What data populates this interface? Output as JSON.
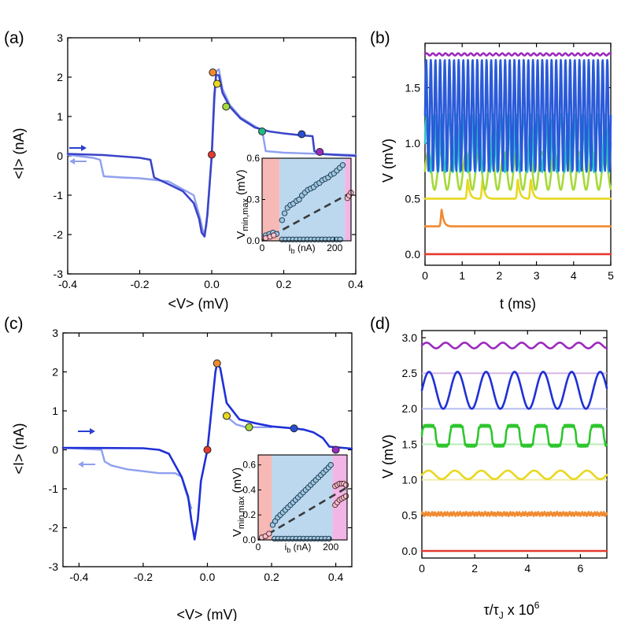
{
  "chart_data": [
    {
      "id": "a",
      "type": "line",
      "panel_label": "(a)",
      "xlabel": "<V> (mV)",
      "ylabel": "<I> (nA)",
      "xlim": [
        -0.4,
        0.4
      ],
      "ylim": [
        -3,
        3
      ],
      "xticks": [
        -0.4,
        -0.2,
        0.0,
        0.2,
        0.4
      ],
      "xtick_labels": [
        "-0.4",
        "-0.2",
        "0.0",
        "0.2",
        "0.4"
      ],
      "yticks": [
        -3,
        -2,
        -1,
        0,
        1,
        2,
        3
      ],
      "ytick_labels": [
        "-3",
        "-2",
        "-1",
        "0",
        "1",
        "2",
        "3"
      ],
      "series": [
        {
          "name": "up-sweep",
          "color": "#3a44c8",
          "x": [
            -0.4,
            -0.3,
            -0.2,
            -0.17,
            -0.16,
            -0.12,
            -0.08,
            -0.05,
            -0.035,
            -0.028,
            -0.02,
            -0.012,
            0.0,
            0.007,
            0.012,
            0.02,
            0.03,
            0.05,
            0.08,
            0.12,
            0.16,
            0.2,
            0.25,
            0.28,
            0.285,
            0.3,
            0.35,
            0.4
          ],
          "y": [
            0.05,
            0.02,
            -0.05,
            -0.1,
            -0.55,
            -0.72,
            -0.9,
            -1.2,
            -1.6,
            -1.95,
            -2.05,
            -1.5,
            0.0,
            1.5,
            2.05,
            2.05,
            1.6,
            1.25,
            0.95,
            0.72,
            0.62,
            0.57,
            0.52,
            0.5,
            0.12,
            0.05,
            0.02,
            0.0
          ]
        },
        {
          "name": "down-sweep",
          "color": "#8fa0ef",
          "x": [
            -0.4,
            -0.33,
            -0.31,
            -0.3,
            -0.25,
            -0.2,
            -0.12,
            -0.05,
            -0.032,
            -0.022,
            -0.015,
            0.0,
            0.008,
            0.013,
            0.02,
            0.03,
            0.05,
            0.08,
            0.12,
            0.14,
            0.15,
            0.2,
            0.3,
            0.4
          ],
          "y": [
            0.03,
            -0.05,
            -0.1,
            -0.52,
            -0.55,
            -0.57,
            -0.65,
            -1.0,
            -1.6,
            -2.0,
            -1.8,
            0.0,
            1.5,
            2.15,
            2.2,
            1.7,
            1.3,
            0.98,
            0.75,
            0.65,
            0.12,
            0.08,
            0.05,
            0.02
          ]
        }
      ],
      "markers": [
        {
          "x": 0.0,
          "y": 0.03,
          "color": "#e43a2f"
        },
        {
          "x": 0.003,
          "y": 2.12,
          "color": "#f08a30"
        },
        {
          "x": 0.015,
          "y": 1.83,
          "color": "#e8d820"
        },
        {
          "x": 0.04,
          "y": 1.25,
          "color": "#a6d93a"
        },
        {
          "x": 0.14,
          "y": 0.62,
          "color": "#21b98a"
        },
        {
          "x": 0.25,
          "y": 0.55,
          "color": "#2a4fd7"
        },
        {
          "x": 0.3,
          "y": 0.1,
          "color": "#9b2bbd"
        }
      ],
      "arrows": [
        {
          "direction": "right",
          "color": "#2a3fd0"
        },
        {
          "direction": "left",
          "color": "#8fa0ef"
        }
      ],
      "inset": {
        "type": "scatter",
        "xlabel": "I_b (nA)",
        "xlabel_main": "I",
        "xlabel_sub": "b",
        "xlabel_unit": " (nA)",
        "ylabel_main": "V",
        "ylabel_sub": "min,max",
        "ylabel_unit": " (mV)",
        "xlim": [
          0,
          245
        ],
        "ylim": [
          0,
          0.6
        ],
        "xticks": [
          0,
          200
        ],
        "xtick_labels": [
          "0",
          "200"
        ],
        "yticks": [
          0.0,
          0.3,
          0.6
        ],
        "ytick_labels": [
          "0.0",
          "0.3",
          "0.6"
        ],
        "regions": [
          {
            "from": 0,
            "to": 48,
            "color": "#f7b9b5"
          },
          {
            "from": 48,
            "to": 228,
            "color": "#bcd8ee"
          },
          {
            "from": 228,
            "to": 245,
            "color": "#f2b6e6"
          }
        ],
        "vmax_x": [
          10,
          20,
          30,
          40,
          55,
          62,
          70,
          78,
          86,
          95,
          102,
          110,
          118,
          126,
          134,
          142,
          150,
          158,
          166,
          174,
          182,
          190,
          198,
          206,
          214,
          222
        ],
        "vmax_y": [
          0.04,
          0.05,
          0.06,
          0.05,
          0.15,
          0.2,
          0.24,
          0.26,
          0.27,
          0.29,
          0.3,
          0.33,
          0.35,
          0.37,
          0.38,
          0.39,
          0.41,
          0.42,
          0.44,
          0.45,
          0.46,
          0.48,
          0.49,
          0.51,
          0.53,
          0.55
        ],
        "vmin_x": [
          55,
          65,
          75,
          85,
          95,
          105,
          115,
          125,
          135,
          145,
          155,
          165,
          175,
          185,
          195,
          205,
          215
        ],
        "vmin_y": [
          0.01,
          0.01,
          0.01,
          0.01,
          0.01,
          0.01,
          0.01,
          0.01,
          0.01,
          0.01,
          0.01,
          0.01,
          0.01,
          0.01,
          0.01,
          0.01,
          0.01
        ],
        "pink_x": [
          10,
          22,
          32,
          235,
          240,
          245
        ],
        "pink_y": [
          0.02,
          0.03,
          0.04,
          0.31,
          0.33,
          0.35
        ],
        "trend": {
          "x": [
            0,
            245
          ],
          "y": [
            0.0,
            0.35
          ]
        }
      }
    },
    {
      "id": "b",
      "type": "line",
      "panel_label": "(b)",
      "xlabel": "t (ms)",
      "ylabel": "V (mV)",
      "xlim": [
        0,
        5
      ],
      "ylim": [
        -0.1,
        1.9
      ],
      "xticks": [
        0,
        1,
        2,
        3,
        4,
        5
      ],
      "xtick_labels": [
        "0",
        "1",
        "2",
        "3",
        "4",
        "5"
      ],
      "yticks": [
        0.0,
        0.5,
        1.0,
        1.5
      ],
      "ytick_labels": [
        "0.0",
        "0.5",
        "1.0",
        "1.5"
      ],
      "traces": [
        {
          "kind": "flat",
          "baseline": 0.0,
          "amp": 0.0,
          "color": "#e43a2f"
        },
        {
          "kind": "spike",
          "baseline": 0.25,
          "amp": 0.15,
          "spike_times": [
            0.45
          ],
          "width": 0.12,
          "color": "#f08a30"
        },
        {
          "kind": "spike",
          "baseline": 0.5,
          "amp": 0.17,
          "spike_times": [
            1.15,
            1.55,
            2.5,
            2.85
          ],
          "width": 0.12,
          "color": "#e8d820"
        },
        {
          "kind": "osc",
          "baseline": 0.75,
          "amp": 0.17,
          "period": 0.34,
          "color": "#a6d93a"
        },
        {
          "kind": "osc",
          "baseline": 1.0,
          "amp": 0.26,
          "period": 0.2,
          "color": "#27c6cb"
        },
        {
          "kind": "osc",
          "baseline": 1.25,
          "amp": 0.5,
          "period": 0.125,
          "color": "#2a5ad8"
        },
        {
          "kind": "flat",
          "baseline": 1.8,
          "amp": 0.01,
          "color": "#9b2bbd"
        }
      ]
    },
    {
      "id": "c",
      "type": "line",
      "panel_label": "(c)",
      "xlabel": "<V> (mV)",
      "ylabel": "<I> (nA)",
      "xlim": [
        -0.45,
        0.45
      ],
      "ylim": [
        -3,
        3
      ],
      "xticks": [
        -0.4,
        -0.2,
        0.0,
        0.2,
        0.4
      ],
      "xtick_labels": [
        "-0.4",
        "-0.2",
        "0.0",
        "0.2",
        "0.4"
      ],
      "yticks": [
        -3,
        -2,
        -1,
        0,
        1,
        2,
        3
      ],
      "ytick_labels": [
        "-3",
        "-2",
        "-1",
        "0",
        "1",
        "2",
        "3"
      ],
      "series": [
        {
          "name": "up-sweep",
          "color": "#1f30d6",
          "x": [
            -0.45,
            -0.2,
            -0.15,
            -0.12,
            -0.1,
            -0.08,
            -0.06,
            -0.05,
            -0.04,
            -0.03,
            -0.02,
            0.0,
            0.015,
            0.025,
            0.03,
            0.04,
            0.06,
            0.1,
            0.15,
            0.2,
            0.27,
            0.3,
            0.33,
            0.36,
            0.38,
            0.45
          ],
          "y": [
            0.05,
            0.04,
            0.0,
            -0.1,
            -0.4,
            -0.7,
            -1.2,
            -1.8,
            -2.3,
            -1.8,
            -0.8,
            0.0,
            1.2,
            2.0,
            2.2,
            2.1,
            1.2,
            0.78,
            0.68,
            0.6,
            0.55,
            0.52,
            0.45,
            0.3,
            0.08,
            0.03
          ]
        },
        {
          "name": "down-sweep",
          "color": "#8fa0ef",
          "x": [
            -0.45,
            -0.33,
            -0.32,
            -0.3,
            -0.25,
            -0.2,
            -0.15,
            -0.1,
            -0.08,
            -0.07,
            -0.05
          ],
          "y": [
            0.05,
            0.0,
            -0.3,
            -0.4,
            -0.5,
            -0.55,
            -0.6,
            -0.6,
            -0.7,
            -1.0,
            -1.5
          ]
        },
        {
          "name": "down-sweep-upper",
          "color": "#8fa0ef",
          "x": [
            0.06,
            0.09,
            0.12,
            0.16,
            0.2
          ],
          "y": [
            0.85,
            0.65,
            0.58,
            0.58,
            0.58
          ]
        }
      ],
      "markers": [
        {
          "x": 0.0,
          "y": 0.0,
          "color": "#e43a2f"
        },
        {
          "x": 0.03,
          "y": 2.22,
          "color": "#f08a30"
        },
        {
          "x": 0.06,
          "y": 0.87,
          "color": "#e8d820"
        },
        {
          "x": 0.13,
          "y": 0.58,
          "color": "#a6d93a"
        },
        {
          "x": 0.27,
          "y": 0.55,
          "color": "#2a4fd7"
        },
        {
          "x": 0.4,
          "y": 0.0,
          "color": "#9b2bbd"
        }
      ],
      "arrows": [
        {
          "direction": "right",
          "color": "#2a3fd0"
        },
        {
          "direction": "left",
          "color": "#8fa0ef"
        }
      ],
      "inset": {
        "type": "scatter",
        "xlabel": "i_b (nA)",
        "xlabel_main": "i",
        "xlabel_sub": "b",
        "xlabel_unit": " (nA)",
        "ylabel_main": "V",
        "ylabel_sub": "min,max",
        "ylabel_unit": " (mV)",
        "xlim": [
          0,
          245
        ],
        "ylim": [
          0,
          0.68
        ],
        "xticks": [
          0,
          200
        ],
        "xtick_labels": [
          "0",
          "200"
        ],
        "yticks": [
          0.0,
          0.2,
          0.4,
          0.6
        ],
        "ytick_labels": [
          "0.0",
          "0.2",
          "0.4",
          "0.6"
        ],
        "regions": [
          {
            "from": 0,
            "to": 38,
            "color": "#f7b9b5"
          },
          {
            "from": 38,
            "to": 205,
            "color": "#bcd8ee"
          },
          {
            "from": 205,
            "to": 245,
            "color": "#f2b6e6"
          }
        ],
        "vmax_x": [
          40,
          47,
          54,
          61,
          68,
          75,
          82,
          89,
          96,
          103,
          110,
          117,
          124,
          131,
          138,
          145,
          152,
          159,
          166,
          173,
          180,
          187,
          194,
          200
        ],
        "vmax_y": [
          0.12,
          0.15,
          0.18,
          0.2,
          0.22,
          0.24,
          0.26,
          0.28,
          0.3,
          0.32,
          0.34,
          0.36,
          0.38,
          0.4,
          0.42,
          0.44,
          0.46,
          0.48,
          0.5,
          0.52,
          0.54,
          0.56,
          0.58,
          0.6
        ],
        "vmin_x": [
          45,
          55,
          65,
          75,
          85,
          95,
          105,
          115,
          125,
          135,
          145,
          155,
          165,
          175,
          185,
          195
        ],
        "vmin_y": [
          0.01,
          0.01,
          0.01,
          0.01,
          0.01,
          0.01,
          0.01,
          0.01,
          0.01,
          0.01,
          0.01,
          0.01,
          0.01,
          0.01,
          0.01,
          0.01
        ],
        "pink_x": [
          10,
          20,
          30,
          212,
          218,
          224,
          230,
          236,
          242,
          212,
          218,
          224,
          230,
          236,
          242
        ],
        "pink_y": [
          0.02,
          0.03,
          0.05,
          0.28,
          0.3,
          0.32,
          0.33,
          0.34,
          0.35,
          0.43,
          0.44,
          0.45,
          0.45,
          0.45,
          0.44
        ],
        "trend": {
          "x": [
            0,
            245
          ],
          "y": [
            0.0,
            0.42
          ]
        }
      }
    },
    {
      "id": "d",
      "type": "line",
      "panel_label": "(d)",
      "xlabel": "τ/τJ x 10^6",
      "xlabel_parts": {
        "tau": "τ/τ",
        "sub": "J",
        "mid": " x 10",
        "sup": "6"
      },
      "ylabel": "V (mV)",
      "xlim": [
        0,
        7
      ],
      "ylim": [
        -0.1,
        3.1
      ],
      "xticks": [
        0,
        2,
        4,
        6
      ],
      "xtick_labels": [
        "0",
        "2",
        "4",
        "6"
      ],
      "yticks": [
        0.0,
        0.5,
        1.0,
        1.5,
        2.0,
        2.5,
        3.0
      ],
      "ytick_labels": [
        "0.0",
        "0.5",
        "1.0",
        "1.5",
        "2.0",
        "2.5",
        "3.0"
      ],
      "traces": [
        {
          "kind": "flat",
          "baseline": 0.0,
          "amp": 0.0,
          "color": "#e43a2f"
        },
        {
          "kind": "noise",
          "baseline": 0.52,
          "amp": 0.03,
          "color": "#f08a30"
        },
        {
          "kind": "osc",
          "baseline": 1.07,
          "amp": 0.06,
          "period": 1.0,
          "color": "#e8d820"
        },
        {
          "kind": "square",
          "baseline": 1.62,
          "amp": 0.14,
          "period": 1.06,
          "color": "#2ec62e"
        },
        {
          "kind": "osc",
          "baseline": 2.26,
          "amp": 0.26,
          "period": 1.08,
          "color": "#1f30d6"
        },
        {
          "kind": "osc",
          "baseline": 2.89,
          "amp": 0.04,
          "period": 0.72,
          "color": "#9b2bbd"
        }
      ],
      "guide_lines": [
        {
          "y": 2.0,
          "color": "#b6bdf0"
        },
        {
          "y": 2.5,
          "color": "#d7b6e3"
        },
        {
          "y": 1.5,
          "color": "#b8ecb8"
        },
        {
          "y": 1.0,
          "color": "#f0ecb0"
        }
      ]
    }
  ]
}
